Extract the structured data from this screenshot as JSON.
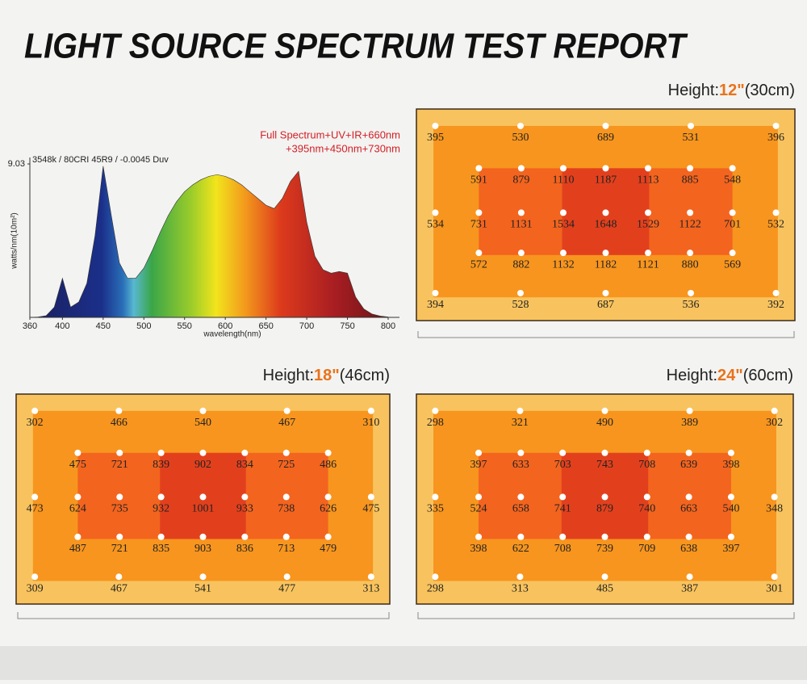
{
  "title": "LIGHT SOURCE SPECTRUM TEST REPORT",
  "chart_data": [
    {
      "type": "line",
      "annotations": [
        "3548k / 80CRI 45R9 / -0.0045 Duv",
        "Full Spectrum+UV+IR+660nm",
        "+395nm+450nm+730nm"
      ],
      "xlabel": "wavelength(nm)",
      "ylabel": "watts/nm(10m²)",
      "x": [
        360,
        370,
        380,
        390,
        400,
        410,
        420,
        430,
        440,
        450,
        460,
        470,
        480,
        490,
        500,
        510,
        520,
        530,
        540,
        550,
        560,
        570,
        580,
        590,
        600,
        610,
        620,
        630,
        640,
        650,
        660,
        670,
        680,
        690,
        700,
        710,
        720,
        730,
        740,
        750,
        760,
        770,
        780,
        790,
        800
      ],
      "values": [
        0,
        0.02,
        0.1,
        0.6,
        2.3,
        0.6,
        0.9,
        2.0,
        4.8,
        8.9,
        6.0,
        3.2,
        2.3,
        2.3,
        2.9,
        3.9,
        5.0,
        6.0,
        6.8,
        7.4,
        7.8,
        8.1,
        8.3,
        8.4,
        8.3,
        8.1,
        7.8,
        7.4,
        7.0,
        6.6,
        6.4,
        7.0,
        8.0,
        8.6,
        5.6,
        3.6,
        2.8,
        2.6,
        2.7,
        2.6,
        1.2,
        0.5,
        0.2,
        0.08,
        0.02
      ],
      "xlim": [
        360,
        800
      ],
      "xticks": [
        360,
        400,
        450,
        500,
        550,
        600,
        650,
        700,
        750,
        800
      ],
      "ylim": [
        0,
        9.03
      ],
      "yticks": [
        9.03
      ]
    },
    {
      "type": "heatmap",
      "label": [
        "Height:",
        "12\"",
        "(30cm)"
      ],
      "rows": [
        [
          395,
          530,
          689,
          531,
          396
        ],
        [
          591,
          879,
          1110,
          1187,
          1113,
          885,
          548
        ],
        [
          534,
          731,
          1131,
          1534,
          1648,
          1529,
          1122,
          701,
          532
        ],
        [
          572,
          882,
          1132,
          1182,
          1121,
          880,
          569
        ],
        [
          394,
          528,
          687,
          536,
          392
        ]
      ]
    },
    {
      "type": "heatmap",
      "label": [
        "Height:",
        "18\"",
        "(46cm)"
      ],
      "rows": [
        [
          302,
          466,
          540,
          467,
          310
        ],
        [
          475,
          721,
          839,
          902,
          834,
          725,
          486
        ],
        [
          473,
          624,
          735,
          932,
          1001,
          933,
          738,
          626,
          475
        ],
        [
          487,
          721,
          835,
          903,
          836,
          713,
          479
        ],
        [
          309,
          467,
          541,
          477,
          313
        ]
      ]
    },
    {
      "type": "heatmap",
      "label": [
        "Height:",
        "24\"",
        "(60cm)"
      ],
      "rows": [
        [
          298,
          321,
          490,
          389,
          302
        ],
        [
          397,
          633,
          703,
          743,
          708,
          639,
          398
        ],
        [
          335,
          524,
          658,
          741,
          879,
          740,
          663,
          540,
          348
        ],
        [
          398,
          622,
          708,
          739,
          709,
          638,
          397
        ],
        [
          298,
          313,
          485,
          387,
          301
        ]
      ]
    }
  ]
}
